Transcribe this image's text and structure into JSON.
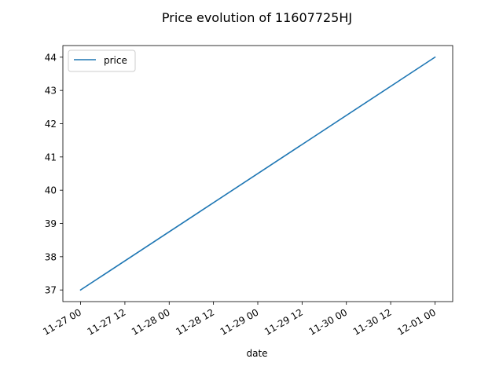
{
  "chart_data": {
    "type": "line",
    "title": "Price evolution of 11607725HJ",
    "xlabel": "date",
    "ylabel": "",
    "x": [
      "2023-11-27T00:00",
      "2023-12-01T00:00"
    ],
    "x_hours": [
      0,
      96
    ],
    "series": [
      {
        "name": "price",
        "values": [
          37,
          44
        ],
        "color": "#1f77b4"
      }
    ],
    "xlim_hours": [
      -4.8,
      100.8
    ],
    "ylim": [
      36.65,
      44.35
    ],
    "x_ticks": [
      {
        "hours": 0,
        "label": "11-27 00"
      },
      {
        "hours": 12,
        "label": "11-27 12"
      },
      {
        "hours": 24,
        "label": "11-28 00"
      },
      {
        "hours": 36,
        "label": "11-28 12"
      },
      {
        "hours": 48,
        "label": "11-29 00"
      },
      {
        "hours": 60,
        "label": "11-29 12"
      },
      {
        "hours": 72,
        "label": "11-30 00"
      },
      {
        "hours": 84,
        "label": "11-30 12"
      },
      {
        "hours": 96,
        "label": "12-01 00"
      }
    ],
    "y_ticks": [
      37,
      38,
      39,
      40,
      41,
      42,
      43,
      44
    ],
    "legend": {
      "position": "top-left",
      "entries": [
        "price"
      ]
    },
    "grid": false
  }
}
